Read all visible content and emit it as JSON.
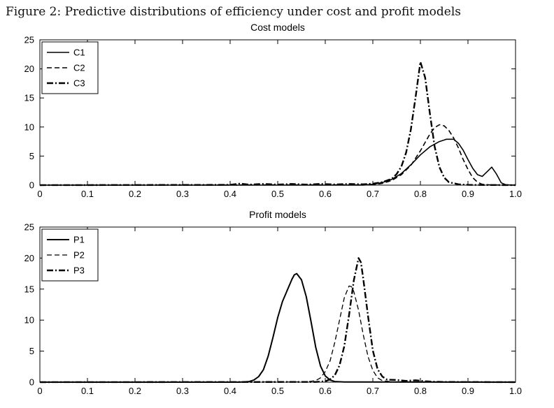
{
  "caption": "Figure 2: Predictive distributions of efficiency under cost and profit models",
  "chart_data": [
    {
      "type": "line",
      "title": "Cost models",
      "xlabel": "",
      "ylabel": "",
      "xlim": [
        0,
        1
      ],
      "ylim": [
        0,
        25
      ],
      "xticks": [
        0,
        0.1,
        0.2,
        0.3,
        0.4,
        0.5,
        0.6,
        0.7,
        0.8,
        0.9,
        1.0
      ],
      "xtick_labels": [
        "0",
        "0.1",
        "0.2",
        "0.3",
        "0.4",
        "0.5",
        "0.6",
        "0.7",
        "0.8",
        "0.9",
        "1.0"
      ],
      "yticks": [
        0,
        5,
        10,
        15,
        20,
        25
      ],
      "ytick_labels": [
        "0",
        "5",
        "10",
        "15",
        "20",
        "25"
      ],
      "grid": false,
      "legend_position": "top-left",
      "series": [
        {
          "name": "C1",
          "style": "solid",
          "width": 1.6,
          "color": "#000000",
          "points": [
            [
              0,
              0
            ],
            [
              0.68,
              0
            ],
            [
              0.7,
              0.15
            ],
            [
              0.72,
              0.45
            ],
            [
              0.74,
              1.0
            ],
            [
              0.76,
              2.0
            ],
            [
              0.78,
              3.5
            ],
            [
              0.8,
              5.2
            ],
            [
              0.82,
              6.6
            ],
            [
              0.84,
              7.5
            ],
            [
              0.855,
              7.9
            ],
            [
              0.87,
              7.9
            ],
            [
              0.88,
              7.2
            ],
            [
              0.89,
              6.0
            ],
            [
              0.9,
              4.4
            ],
            [
              0.91,
              2.9
            ],
            [
              0.92,
              1.8
            ],
            [
              0.93,
              1.5
            ],
            [
              0.94,
              2.3
            ],
            [
              0.95,
              3.1
            ],
            [
              0.96,
              1.9
            ],
            [
              0.97,
              0.4
            ],
            [
              0.98,
              0.05
            ],
            [
              1,
              0
            ]
          ]
        },
        {
          "name": "C2",
          "style": "dashed",
          "width": 1.6,
          "color": "#000000",
          "points": [
            [
              0,
              0
            ],
            [
              0.7,
              0.05
            ],
            [
              0.72,
              0.3
            ],
            [
              0.74,
              0.8
            ],
            [
              0.76,
              1.8
            ],
            [
              0.78,
              3.4
            ],
            [
              0.8,
              5.9
            ],
            [
              0.82,
              8.8
            ],
            [
              0.83,
              9.9
            ],
            [
              0.84,
              10.4
            ],
            [
              0.85,
              10.2
            ],
            [
              0.86,
              9.4
            ],
            [
              0.87,
              8.1
            ],
            [
              0.88,
              6.4
            ],
            [
              0.89,
              4.4
            ],
            [
              0.9,
              2.7
            ],
            [
              0.91,
              1.3
            ],
            [
              0.92,
              0.5
            ],
            [
              0.93,
              0.15
            ],
            [
              0.95,
              0.03
            ],
            [
              1,
              0
            ]
          ]
        },
        {
          "name": "C3",
          "style": "dashdot",
          "width": 2.4,
          "color": "#000000",
          "points": [
            [
              0,
              0
            ],
            [
              0.4,
              0.05
            ],
            [
              0.42,
              0.25
            ],
            [
              0.44,
              0.1
            ],
            [
              0.47,
              0.2
            ],
            [
              0.5,
              0.1
            ],
            [
              0.53,
              0.2
            ],
            [
              0.56,
              0.1
            ],
            [
              0.59,
              0.2
            ],
            [
              0.62,
              0.12
            ],
            [
              0.65,
              0.2
            ],
            [
              0.68,
              0.15
            ],
            [
              0.7,
              0.25
            ],
            [
              0.72,
              0.5
            ],
            [
              0.74,
              1.1
            ],
            [
              0.75,
              1.9
            ],
            [
              0.76,
              3.2
            ],
            [
              0.77,
              5.6
            ],
            [
              0.78,
              9.6
            ],
            [
              0.79,
              15.2
            ],
            [
              0.8,
              21.2
            ],
            [
              0.81,
              18.5
            ],
            [
              0.82,
              12.3
            ],
            [
              0.83,
              6.6
            ],
            [
              0.84,
              3.1
            ],
            [
              0.85,
              1.3
            ],
            [
              0.86,
              0.5
            ],
            [
              0.88,
              0.15
            ],
            [
              0.9,
              0.05
            ],
            [
              1,
              0
            ]
          ]
        }
      ]
    },
    {
      "type": "line",
      "title": "Profit models",
      "xlabel": "",
      "ylabel": "",
      "xlim": [
        0,
        1
      ],
      "ylim": [
        0,
        25
      ],
      "xticks": [
        0,
        0.1,
        0.2,
        0.3,
        0.4,
        0.5,
        0.6,
        0.7,
        0.8,
        0.9,
        1.0
      ],
      "xtick_labels": [
        "0",
        "0.1",
        "0.2",
        "0.3",
        "0.4",
        "0.5",
        "0.6",
        "0.7",
        "0.8",
        "0.9",
        "1.0"
      ],
      "yticks": [
        0,
        5,
        10,
        15,
        20,
        25
      ],
      "ytick_labels": [
        "0",
        "5",
        "10",
        "15",
        "20",
        "25"
      ],
      "grid": false,
      "legend_position": "top-left",
      "series": [
        {
          "name": "P1",
          "style": "solid",
          "width": 2.0,
          "color": "#000000",
          "points": [
            [
              0,
              0
            ],
            [
              0.42,
              0
            ],
            [
              0.44,
              0.1
            ],
            [
              0.45,
              0.35
            ],
            [
              0.46,
              0.9
            ],
            [
              0.47,
              2.0
            ],
            [
              0.48,
              4.2
            ],
            [
              0.49,
              7.2
            ],
            [
              0.5,
              10.4
            ],
            [
              0.51,
              13.0
            ],
            [
              0.52,
              14.8
            ],
            [
              0.53,
              16.6
            ],
            [
              0.535,
              17.3
            ],
            [
              0.54,
              17.5
            ],
            [
              0.55,
              16.5
            ],
            [
              0.56,
              13.8
            ],
            [
              0.57,
              9.8
            ],
            [
              0.58,
              5.6
            ],
            [
              0.59,
              2.6
            ],
            [
              0.6,
              1.0
            ],
            [
              0.61,
              0.35
            ],
            [
              0.62,
              0.1
            ],
            [
              0.64,
              0.03
            ],
            [
              1,
              0
            ]
          ]
        },
        {
          "name": "P2",
          "style": "dashed",
          "width": 1.3,
          "color": "#000000",
          "points": [
            [
              0,
              0
            ],
            [
              0.56,
              0.03
            ],
            [
              0.58,
              0.25
            ],
            [
              0.59,
              0.7
            ],
            [
              0.6,
              1.7
            ],
            [
              0.61,
              3.4
            ],
            [
              0.62,
              6.4
            ],
            [
              0.63,
              10.0
            ],
            [
              0.64,
              13.6
            ],
            [
              0.65,
              15.5
            ],
            [
              0.655,
              15.4
            ],
            [
              0.66,
              14.6
            ],
            [
              0.67,
              11.6
            ],
            [
              0.68,
              7.6
            ],
            [
              0.69,
              4.1
            ],
            [
              0.7,
              1.9
            ],
            [
              0.71,
              0.7
            ],
            [
              0.72,
              0.25
            ],
            [
              0.74,
              0.05
            ],
            [
              1,
              0
            ]
          ]
        },
        {
          "name": "P3",
          "style": "dashdot",
          "width": 2.4,
          "color": "#000000",
          "points": [
            [
              0,
              0
            ],
            [
              0.58,
              0.03
            ],
            [
              0.6,
              0.15
            ],
            [
              0.61,
              0.45
            ],
            [
              0.62,
              1.1
            ],
            [
              0.63,
              2.7
            ],
            [
              0.64,
              5.8
            ],
            [
              0.65,
              10.8
            ],
            [
              0.66,
              16.4
            ],
            [
              0.67,
              20.0
            ],
            [
              0.675,
              19.3
            ],
            [
              0.68,
              16.6
            ],
            [
              0.69,
              10.6
            ],
            [
              0.7,
              5.1
            ],
            [
              0.71,
              2.1
            ],
            [
              0.72,
              0.9
            ],
            [
              0.73,
              0.4
            ],
            [
              0.75,
              0.35
            ],
            [
              0.77,
              0.2
            ],
            [
              0.79,
              0.3
            ],
            [
              0.81,
              0.15
            ],
            [
              0.83,
              0.07
            ],
            [
              0.85,
              0.03
            ],
            [
              1,
              0
            ]
          ]
        }
      ]
    }
  ]
}
